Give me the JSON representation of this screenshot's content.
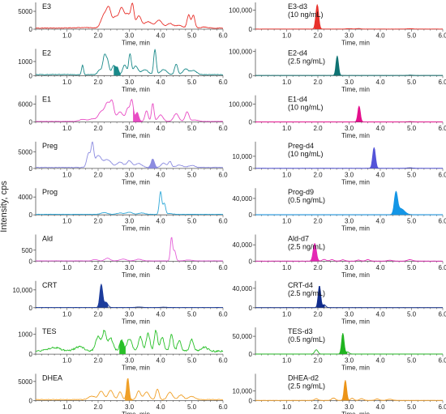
{
  "figure": {
    "shared_ylabel": "Intensity, cps",
    "xlabel": "Time, min",
    "x_ticks": [
      "1.0",
      "2.0",
      "3.0",
      "4.0",
      "5.0",
      "6.0"
    ]
  },
  "chart_data": [
    {
      "type": "line",
      "panel": "left-1",
      "title": "E3",
      "color": "#e8322c",
      "xlim": [
        0,
        6
      ],
      "ylim": [
        0,
        7500
      ],
      "y_ticks": [
        "5000",
        "0"
      ],
      "y_tick_values": [
        5000,
        0
      ],
      "baseline": 300,
      "features": [
        [
          1.5,
          150,
          0.3
        ],
        [
          2.2,
          3800,
          0.1
        ],
        [
          2.35,
          4600,
          0.07
        ],
        [
          2.55,
          3000,
          0.08
        ],
        [
          2.75,
          5500,
          0.08
        ],
        [
          2.95,
          3800,
          0.08
        ],
        [
          3.1,
          6200,
          0.05
        ],
        [
          3.3,
          3300,
          0.08
        ],
        [
          3.6,
          1800,
          0.12
        ],
        [
          3.95,
          2200,
          0.1
        ],
        [
          4.3,
          1300,
          0.1
        ],
        [
          4.6,
          800,
          0.1
        ],
        [
          4.9,
          3700,
          0.05
        ],
        [
          5.05,
          3600,
          0.05
        ],
        [
          5.4,
          300,
          0.1
        ]
      ],
      "shaded": null
    },
    {
      "type": "line",
      "panel": "right-1",
      "title": "E3-d3",
      "subtitle": "(10 ng/mL)",
      "color": "#e8322c",
      "xlim": [
        0,
        6
      ],
      "ylim": [
        0,
        140000
      ],
      "y_ticks": [
        "100,000",
        "0"
      ],
      "y_tick_values": [
        100000,
        0
      ],
      "baseline": 800,
      "features": [
        [
          1.98,
          128000,
          0.045
        ],
        [
          3.0,
          2000,
          0.08
        ],
        [
          3.3,
          2500,
          0.06
        ],
        [
          4.95,
          1500,
          0.08
        ]
      ],
      "shaded": [
        1.87,
        2.12
      ]
    },
    {
      "type": "line",
      "panel": "left-2",
      "title": "E2",
      "color": "#1a8a8a",
      "xlim": [
        0,
        6
      ],
      "ylim": [
        0,
        1900
      ],
      "y_ticks": [
        "1000",
        "0"
      ],
      "y_tick_values": [
        1000,
        0
      ],
      "baseline": 70,
      "features": [
        [
          1.5,
          700,
          0.03
        ],
        [
          2.05,
          350,
          0.06
        ],
        [
          2.2,
          1300,
          0.05
        ],
        [
          2.3,
          950,
          0.05
        ],
        [
          2.5,
          650,
          0.06
        ],
        [
          2.62,
          450,
          0.04
        ],
        [
          2.85,
          700,
          0.06
        ],
        [
          3.02,
          1450,
          0.04
        ],
        [
          3.2,
          600,
          0.08
        ],
        [
          3.5,
          350,
          0.1
        ],
        [
          3.82,
          1800,
          0.04
        ],
        [
          4.1,
          350,
          0.1
        ],
        [
          4.5,
          750,
          0.05
        ],
        [
          4.8,
          400,
          0.08
        ],
        [
          5.05,
          300,
          0.1
        ]
      ],
      "shaded": [
        2.5,
        2.72
      ]
    },
    {
      "type": "line",
      "panel": "right-2",
      "title": "E2-d4",
      "subtitle": "(2.5 ng/mL)",
      "color": "#0f7373",
      "xlim": [
        0,
        6
      ],
      "ylim": [
        0,
        110000
      ],
      "y_ticks": [
        "100,000",
        "0"
      ],
      "y_tick_values": [
        100000,
        0
      ],
      "baseline": 600,
      "features": [
        [
          2.62,
          80000,
          0.04
        ],
        [
          4.95,
          1200,
          0.08
        ]
      ],
      "shaded": [
        2.52,
        2.75
      ]
    },
    {
      "type": "line",
      "panel": "left-3",
      "title": "E1",
      "color": "#e84cc4",
      "xlim": [
        0,
        6
      ],
      "ylim": [
        0,
        9000
      ],
      "y_ticks": [
        "6000",
        "0"
      ],
      "y_tick_values": [
        6000,
        0
      ],
      "baseline": 200,
      "features": [
        [
          1.5,
          700,
          0.1
        ],
        [
          1.8,
          800,
          0.1
        ],
        [
          2.1,
          3200,
          0.1
        ],
        [
          2.3,
          5800,
          0.08
        ],
        [
          2.45,
          6000,
          0.06
        ],
        [
          2.7,
          3200,
          0.1
        ],
        [
          2.95,
          4200,
          0.06
        ],
        [
          3.08,
          7000,
          0.05
        ],
        [
          3.25,
          3000,
          0.05
        ],
        [
          3.55,
          3600,
          0.05
        ],
        [
          3.75,
          6100,
          0.04
        ],
        [
          4.0,
          2200,
          0.08
        ],
        [
          4.5,
          2600,
          0.08
        ],
        [
          4.85,
          3200,
          0.06
        ],
        [
          5.1,
          500,
          0.1
        ]
      ],
      "shaded": [
        3.12,
        3.4
      ]
    },
    {
      "type": "line",
      "panel": "right-3",
      "title": "E1-d4",
      "subtitle": "(10 ng/mL)",
      "color": "#e40f8c",
      "xlim": [
        0,
        6
      ],
      "ylim": [
        0,
        150000
      ],
      "y_ticks": [
        "100,000",
        "0"
      ],
      "y_tick_values": [
        100000,
        0
      ],
      "baseline": 700,
      "features": [
        [
          3.32,
          88000,
          0.04
        ],
        [
          4.95,
          1500,
          0.08
        ]
      ],
      "shaded": [
        3.22,
        3.45
      ]
    },
    {
      "type": "line",
      "panel": "left-4",
      "title": "Preg",
      "color": "#8c8ce0",
      "xlim": [
        0,
        6
      ],
      "ylim": [
        0,
        8000
      ],
      "y_ticks": [
        "5000",
        "0"
      ],
      "y_tick_values": [
        5000,
        0
      ],
      "baseline": 300,
      "features": [
        [
          1.7,
          4300,
          0.06
        ],
        [
          1.82,
          6500,
          0.04
        ],
        [
          2.0,
          3500,
          0.1
        ],
        [
          2.3,
          2300,
          0.12
        ],
        [
          2.7,
          1600,
          0.1
        ],
        [
          3.0,
          2000,
          0.08
        ],
        [
          3.3,
          1200,
          0.1
        ],
        [
          3.75,
          2600,
          0.05
        ],
        [
          4.1,
          1300,
          0.08
        ],
        [
          4.3,
          1800,
          0.05
        ],
        [
          4.6,
          700,
          0.1
        ],
        [
          5.0,
          600,
          0.1
        ]
      ],
      "shaded": [
        3.6,
        3.9
      ]
    },
    {
      "type": "line",
      "panel": "right-4",
      "title": "Preg-d4",
      "subtitle": "(10 ng/mL)",
      "color": "#5454d8",
      "xlim": [
        0,
        6
      ],
      "ylim": [
        0,
        22000
      ],
      "y_ticks": [
        "10,000",
        "0"
      ],
      "y_tick_values": [
        10000,
        0
      ],
      "baseline": 150,
      "features": [
        [
          3.8,
          17000,
          0.045
        ],
        [
          4.95,
          400,
          0.08
        ]
      ],
      "shaded": [
        3.68,
        3.95
      ]
    },
    {
      "type": "line",
      "panel": "left-5",
      "title": "Prog",
      "color": "#2fa8d8",
      "xlim": [
        0,
        6
      ],
      "ylim": [
        0,
        6000
      ],
      "y_ticks": [
        "4000",
        "0"
      ],
      "y_tick_values": [
        4000,
        0
      ],
      "baseline": 120,
      "features": [
        [
          2.2,
          400,
          0.1
        ],
        [
          2.7,
          300,
          0.1
        ],
        [
          3.0,
          450,
          0.1
        ],
        [
          3.4,
          300,
          0.1
        ],
        [
          4.0,
          5100,
          0.04
        ],
        [
          4.12,
          2500,
          0.04
        ],
        [
          4.3,
          200,
          0.08
        ]
      ],
      "shaded": null
    },
    {
      "type": "line",
      "panel": "right-5",
      "title": "Prog-d9",
      "subtitle": "(0.5 ng/mL)",
      "color": "#1496e6",
      "xlim": [
        0,
        6
      ],
      "ylim": [
        0,
        65000
      ],
      "y_ticks": [
        "40,000",
        "0"
      ],
      "y_tick_values": [
        40000,
        0
      ],
      "baseline": 400,
      "features": [
        [
          4.5,
          50000,
          0.05
        ],
        [
          4.65,
          15000,
          0.12
        ]
      ],
      "shaded": [
        4.35,
        4.9
      ]
    },
    {
      "type": "line",
      "panel": "left-6",
      "title": "Ald",
      "color": "#e460d8",
      "xlim": [
        0,
        6
      ],
      "ylim": [
        0,
        1200
      ],
      "y_ticks": [
        "500",
        "0"
      ],
      "y_tick_values": [
        500,
        0
      ],
      "baseline": 20,
      "features": [
        [
          1.9,
          60,
          0.08
        ],
        [
          2.3,
          120,
          0.08
        ],
        [
          2.8,
          80,
          0.1
        ],
        [
          3.3,
          70,
          0.1
        ],
        [
          4.35,
          1050,
          0.035
        ],
        [
          4.45,
          450,
          0.04
        ],
        [
          4.9,
          40,
          0.1
        ]
      ],
      "shaded": null
    },
    {
      "type": "line",
      "panel": "right-6",
      "title": "Ald-d7",
      "subtitle": "(2.5 ng/mL)",
      "color": "#e428b4",
      "xlim": [
        0,
        6
      ],
      "ylim": [
        0,
        65000
      ],
      "y_ticks": [
        "40,000",
        "0"
      ],
      "y_tick_values": [
        40000,
        0
      ],
      "baseline": 500,
      "features": [
        [
          1.9,
          43000,
          0.05
        ],
        [
          2.2,
          4000,
          0.06
        ],
        [
          2.45,
          3500,
          0.06
        ],
        [
          2.8,
          3000,
          0.06
        ],
        [
          3.3,
          2500,
          0.06
        ],
        [
          3.6,
          3500,
          0.06
        ],
        [
          4.3,
          2000,
          0.08
        ],
        [
          4.95,
          3500,
          0.08
        ]
      ],
      "shaded": [
        1.78,
        2.05
      ]
    },
    {
      "type": "line",
      "panel": "left-7",
      "title": "CRT",
      "color": "#1c3c9c",
      "xlim": [
        0,
        6
      ],
      "ylim": [
        0,
        15000
      ],
      "y_ticks": [
        "10,000",
        "0"
      ],
      "y_tick_values": [
        10000,
        0
      ],
      "baseline": 100,
      "features": [
        [
          2.1,
          13000,
          0.045
        ],
        [
          2.25,
          3000,
          0.06
        ],
        [
          3.3,
          300,
          0.1
        ],
        [
          4.1,
          200,
          0.1
        ]
      ],
      "shaded": [
        1.98,
        2.32
      ]
    },
    {
      "type": "line",
      "panel": "right-7",
      "title": "CRT-d4",
      "subtitle": "(2.5 ng/mL)",
      "color": "#102c8c",
      "xlim": [
        0,
        6
      ],
      "ylim": [
        0,
        55000
      ],
      "y_ticks": [
        "40,000",
        "0"
      ],
      "y_tick_values": [
        40000,
        0
      ],
      "baseline": 200,
      "features": [
        [
          2.05,
          45000,
          0.04
        ],
        [
          2.2,
          6000,
          0.05
        ]
      ],
      "shaded": [
        1.95,
        2.22
      ]
    },
    {
      "type": "line",
      "panel": "left-8",
      "title": "TES",
      "color": "#28c028",
      "xlim": [
        0,
        6
      ],
      "ylim": [
        0,
        1350
      ],
      "y_ticks": [
        "1000",
        "0"
      ],
      "y_tick_values": [
        1000,
        0
      ],
      "baseline": 150,
      "features": [
        [
          0.6,
          180,
          0.2
        ],
        [
          1.4,
          220,
          0.15
        ],
        [
          2.0,
          750,
          0.08
        ],
        [
          2.2,
          1000,
          0.06
        ],
        [
          2.4,
          650,
          0.08
        ],
        [
          2.75,
          550,
          0.06
        ],
        [
          3.0,
          620,
          0.08
        ],
        [
          3.35,
          750,
          0.06
        ],
        [
          3.6,
          900,
          0.06
        ],
        [
          3.85,
          1050,
          0.05
        ],
        [
          4.05,
          700,
          0.06
        ],
        [
          4.35,
          850,
          0.05
        ],
        [
          4.6,
          550,
          0.06
        ],
        [
          5.0,
          600,
          0.06
        ],
        [
          5.4,
          200,
          0.1
        ]
      ],
      "shaded": [
        2.68,
        2.88
      ]
    },
    {
      "type": "line",
      "panel": "right-8",
      "title": "TES-d3",
      "subtitle": "(0.5 ng/mL)",
      "color": "#20b420",
      "xlim": [
        0,
        6
      ],
      "ylim": [
        0,
        75000
      ],
      "y_ticks": [
        "50,000",
        "0"
      ],
      "y_tick_values": [
        50000,
        0
      ],
      "baseline": 300,
      "features": [
        [
          1.95,
          12000,
          0.05
        ],
        [
          2.8,
          58000,
          0.04
        ],
        [
          2.95,
          6000,
          0.05
        ]
      ],
      "shaded": [
        2.7,
        2.95
      ]
    },
    {
      "type": "line",
      "panel": "left-9",
      "title": "DHEA",
      "color": "#f0a028",
      "xlim": [
        0,
        6
      ],
      "ylim": [
        0,
        7000
      ],
      "y_ticks": [
        "5000",
        "0"
      ],
      "y_tick_values": [
        5000,
        0
      ],
      "baseline": 250,
      "features": [
        [
          1.8,
          900,
          0.1
        ],
        [
          2.1,
          2200,
          0.08
        ],
        [
          2.4,
          2400,
          0.08
        ],
        [
          2.7,
          2000,
          0.06
        ],
        [
          2.95,
          5600,
          0.04
        ],
        [
          3.3,
          2300,
          0.06
        ],
        [
          3.55,
          2000,
          0.08
        ],
        [
          3.9,
          2800,
          0.05
        ],
        [
          4.3,
          1900,
          0.08
        ],
        [
          4.65,
          1200,
          0.08
        ],
        [
          5.0,
          800,
          0.1
        ]
      ],
      "shaded": [
        2.85,
        3.1
      ]
    },
    {
      "type": "line",
      "panel": "right-9",
      "title": "DHEA-d2",
      "subtitle": "(2.5 ng/mL)",
      "color": "#ec9418",
      "xlim": [
        0,
        6
      ],
      "ylim": [
        0,
        28000
      ],
      "y_ticks": [
        "10,000",
        "0"
      ],
      "y_tick_values": [
        10000,
        0
      ],
      "baseline": 150,
      "features": [
        [
          1.95,
          1800,
          0.05
        ],
        [
          2.5,
          2500,
          0.06
        ],
        [
          2.88,
          21000,
          0.04
        ],
        [
          3.1,
          2200,
          0.05
        ],
        [
          3.4,
          1800,
          0.06
        ],
        [
          3.9,
          1500,
          0.06
        ],
        [
          4.3,
          1200,
          0.08
        ]
      ],
      "shaded": [
        2.78,
        3.0
      ]
    }
  ]
}
